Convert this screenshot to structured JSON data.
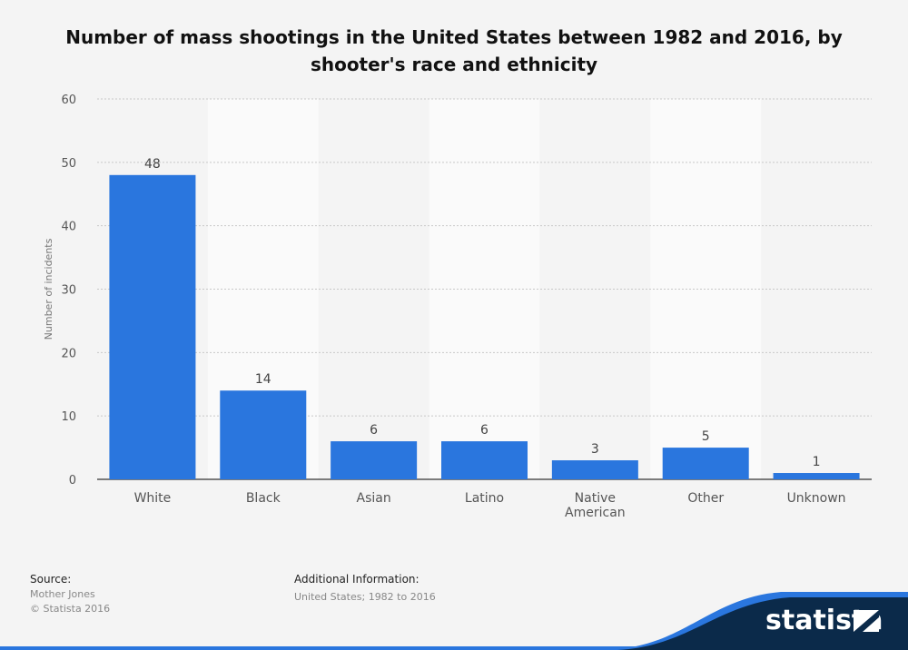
{
  "title": "Number of mass shootings in the United States between 1982 and 2016, by shooter's race and ethnicity",
  "chart_data": {
    "type": "bar",
    "title": "Number of mass shootings in the United States between 1982 and 2016, by shooter's race and ethnicity",
    "xlabel": "",
    "ylabel": "Number of incidents",
    "categories": [
      "White",
      "Black",
      "Asian",
      "Latino",
      "Native American",
      "Other",
      "Unknown"
    ],
    "values": [
      48,
      14,
      6,
      6,
      3,
      5,
      1
    ],
    "ylim": [
      0,
      60
    ],
    "yticks": [
      0,
      10,
      20,
      30,
      40,
      50,
      60
    ],
    "grid": true,
    "bar_color": "#2a76de"
  },
  "footer": {
    "source_label": "Source:",
    "source_lines": [
      "Mother Jones",
      "© Statista 2016"
    ],
    "additional_label": "Additional Information:",
    "additional_text": "United States; 1982 to 2016"
  },
  "brand": {
    "name": "statista",
    "dark_color": "#0b2a4a",
    "accent_color": "#2a76de"
  }
}
